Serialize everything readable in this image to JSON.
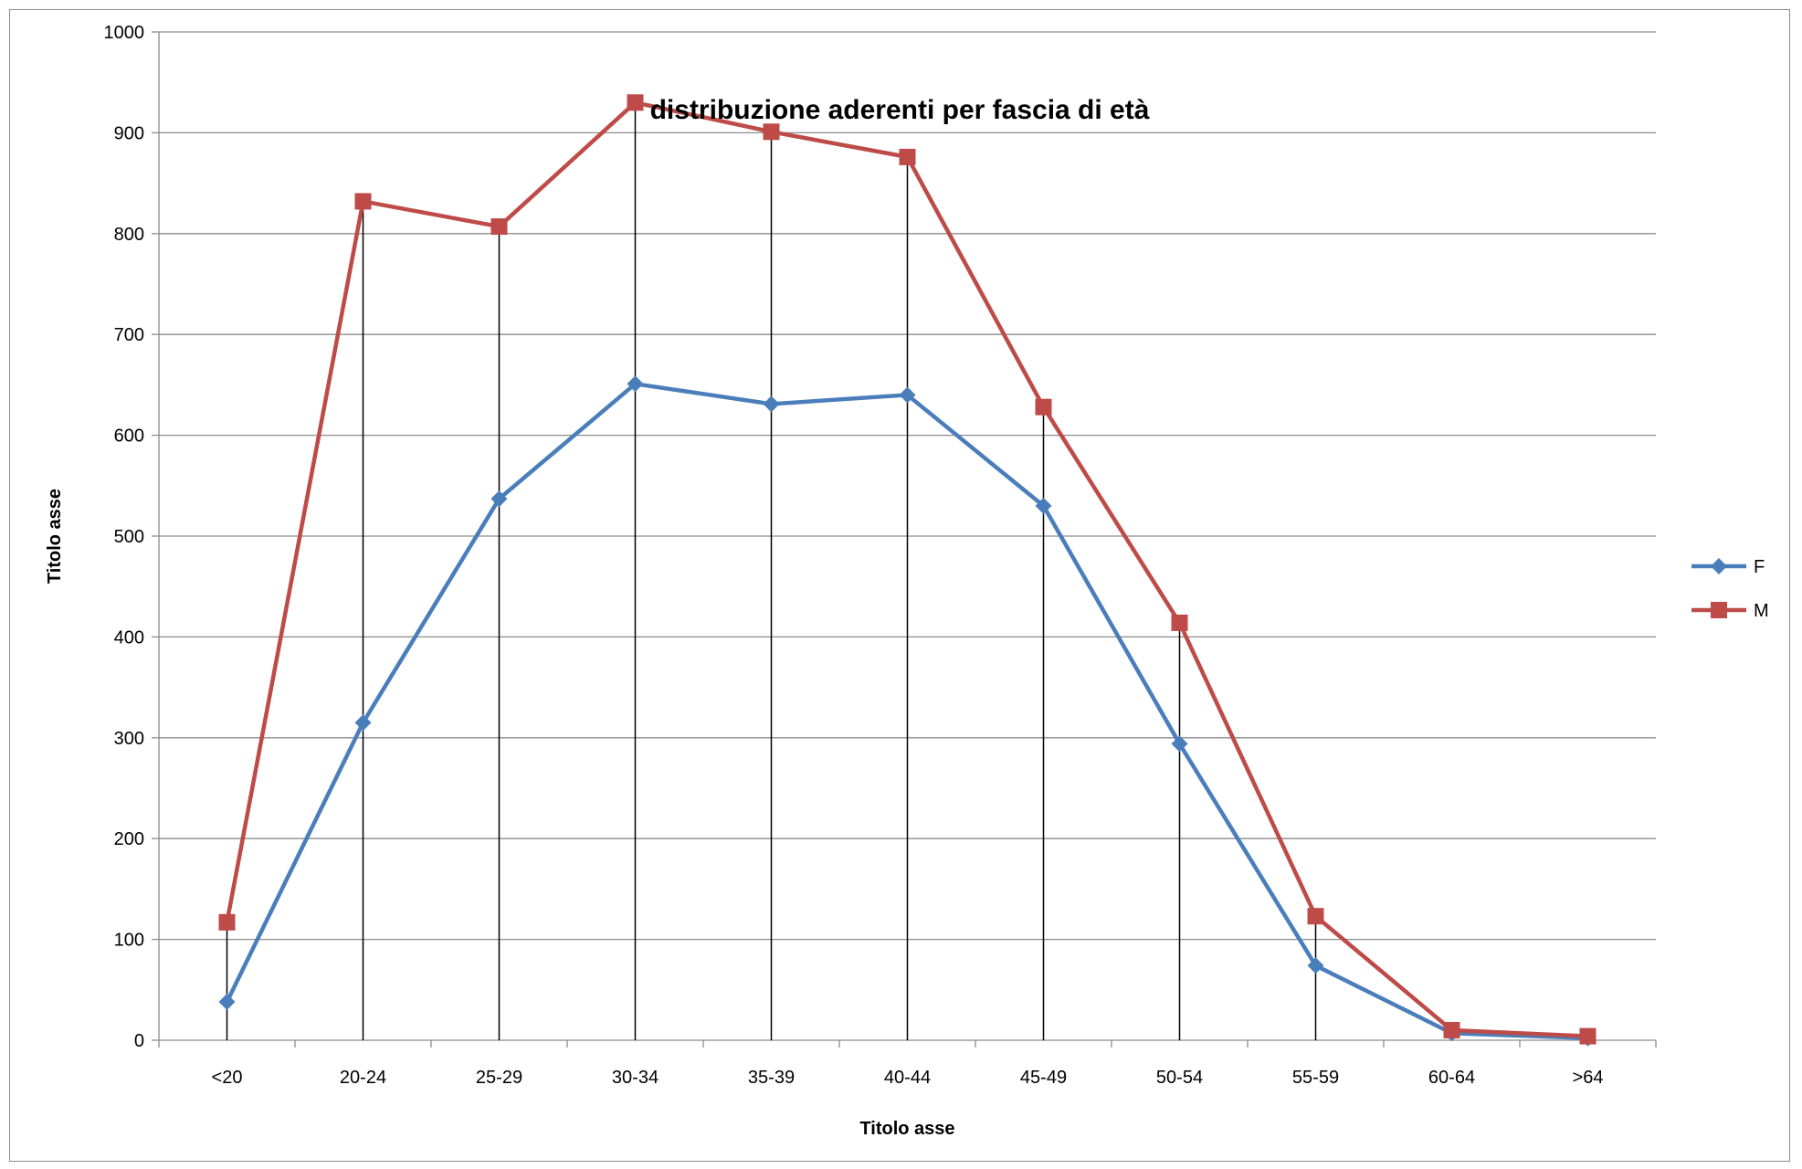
{
  "chart_data": {
    "type": "line",
    "title": "distribuzione aderenti  per  fascia di età",
    "xlabel": "Titolo asse",
    "ylabel": "Titolo asse",
    "categories": [
      "<20",
      "20-24",
      "25-29",
      "30-34",
      "35-39",
      "40-44",
      "45-49",
      "50-54",
      "55-59",
      "60-64",
      ">64"
    ],
    "ylim": [
      0,
      1000
    ],
    "yticks": [
      0,
      100,
      200,
      300,
      400,
      500,
      600,
      700,
      800,
      900,
      1000
    ],
    "grid": true,
    "legend_position": "right",
    "drop_lines": true,
    "series": [
      {
        "name": "F",
        "color": "#4a7ebb",
        "marker": "diamond",
        "values": [
          38,
          315,
          537,
          651,
          631,
          640,
          530,
          294,
          74,
          7,
          2
        ]
      },
      {
        "name": "M",
        "color": "#be4b48",
        "marker": "square",
        "values": [
          117,
          832,
          807,
          930,
          901,
          876,
          628,
          414,
          123,
          10,
          4
        ]
      }
    ]
  }
}
